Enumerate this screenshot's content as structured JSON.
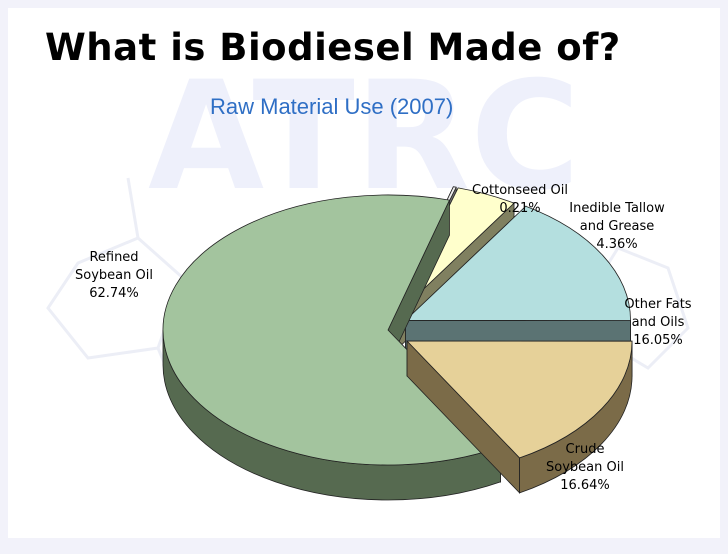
{
  "slide": {
    "title": "What is Biodiesel Made of?",
    "subtitle": "Raw Material Use (2007)",
    "watermark": "ATRC"
  },
  "chart_data": {
    "type": "pie",
    "title": "Raw Material Use (2007)",
    "unit": "%",
    "slices": [
      {
        "label": "Refined Soybean Oil",
        "label_lines": [
          "Refined",
          "Soybean Oil",
          "62.74%"
        ],
        "value": 62.74,
        "color": "#a3c49e",
        "side": "#566a50"
      },
      {
        "label": "Cottonseed Oil",
        "label_lines": [
          "Cottonseed Oil",
          "0.21%"
        ],
        "value": 0.21,
        "color": "#eeeeee",
        "side": "#707070"
      },
      {
        "label": "Inedible Tallow and Grease",
        "label_lines": [
          "Inedible Tallow",
          "and Grease",
          "4.36%"
        ],
        "value": 4.36,
        "color": "#ffffcc",
        "side": "#808060"
      },
      {
        "label": "Other Fats and Oils",
        "label_lines": [
          "Other Fats",
          "and Oils",
          "16.05%"
        ],
        "value": 16.05,
        "color": "#b4dfdf",
        "side": "#5b7373"
      },
      {
        "label": "Crude Soybean Oil",
        "label_lines": [
          "Crude",
          "Soybean Oil",
          "16.64%"
        ],
        "value": 16.64,
        "color": "#e6d199",
        "side": "#7b6b48"
      }
    ]
  }
}
